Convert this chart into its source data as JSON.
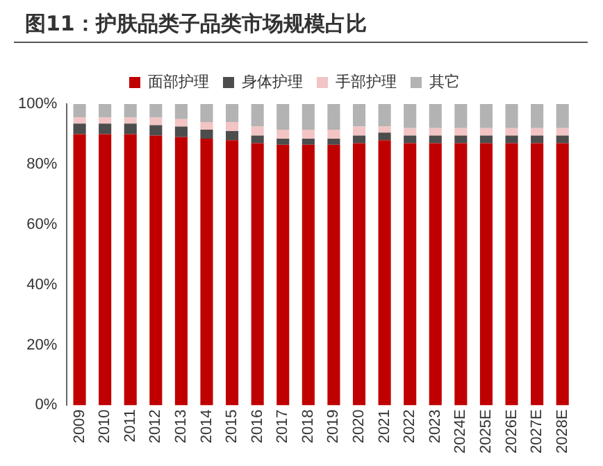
{
  "chart_data": {
    "type": "bar",
    "title": "图11：护肤品类子品类市场规模占比",
    "stacked": true,
    "legend": "top",
    "categories": [
      "2009",
      "2010",
      "2011",
      "2012",
      "2013",
      "2014",
      "2015",
      "2016",
      "2017",
      "2018",
      "2019",
      "2020",
      "2021",
      "2022",
      "2023",
      "2024E",
      "2025E",
      "2026E",
      "2027E",
      "2028E"
    ],
    "series": [
      {
        "name": "面部护理",
        "color": "#c00000",
        "values": [
          90,
          90,
          90,
          89.5,
          89,
          88.5,
          88,
          87,
          86.5,
          86.5,
          86.5,
          87,
          88,
          87,
          87,
          87,
          87,
          87,
          87,
          87
        ]
      },
      {
        "name": "身体护理",
        "color": "#4d4d4d",
        "values": [
          3.5,
          3.5,
          3.5,
          3.5,
          3.5,
          3,
          3,
          2.5,
          2,
          2,
          2,
          2.5,
          2.5,
          2.5,
          2.5,
          2.5,
          2.5,
          2.5,
          2.5,
          2.5
        ]
      },
      {
        "name": "手部护理",
        "color": "#f2c4c4",
        "values": [
          2,
          2,
          2,
          2.5,
          2.5,
          2.5,
          3,
          3,
          3,
          3,
          3,
          3,
          2,
          2.5,
          2.5,
          2.5,
          2.5,
          2.5,
          2.5,
          2.5
        ]
      },
      {
        "name": "其它",
        "color": "#b3b3b3",
        "values": [
          4.5,
          4.5,
          4.5,
          4.5,
          5,
          6,
          6,
          7.5,
          8.5,
          8.5,
          8.5,
          7.5,
          7.5,
          8,
          8,
          8,
          8,
          8,
          8,
          8
        ]
      }
    ],
    "ylim": [
      0,
      100
    ],
    "yticks": [
      {
        "value": 0,
        "label": "0%"
      },
      {
        "value": 20,
        "label": "20%"
      },
      {
        "value": 40,
        "label": "40%"
      },
      {
        "value": 60,
        "label": "60%"
      },
      {
        "value": 80,
        "label": "80%"
      },
      {
        "value": 100,
        "label": "100%"
      }
    ],
    "grid": false
  }
}
